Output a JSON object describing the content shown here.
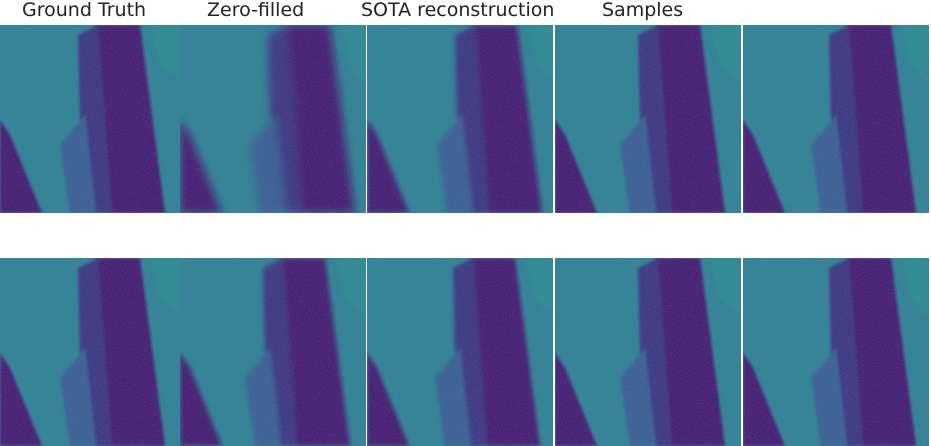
{
  "figure": {
    "column_titles": {
      "ground_truth": "Ground Truth",
      "zero_filled": "Zero-filled",
      "sota": "SOTA reconstruction",
      "samples": "Samples"
    },
    "colormap": {
      "background": "#2c7e8e",
      "light": "#2a8e8a",
      "dark": "#440f67",
      "mid": "#38588c",
      "deep": "#3a2a78"
    }
  }
}
